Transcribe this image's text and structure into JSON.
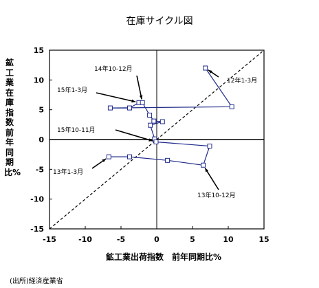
{
  "chart_data": {
    "type": "scatter",
    "title": "在庫サイクル図",
    "xlabel": "鉱工業出荷指数　前年同期比%",
    "ylabel": "鉱工業在庫指数　前年同期比%",
    "xlim": [
      -15,
      15
    ],
    "ylim": [
      -15,
      15
    ],
    "x_ticks": [
      "-15",
      "-10",
      "-5",
      "0",
      "5",
      "10",
      "15"
    ],
    "y_ticks": [
      "15",
      "10",
      "5",
      "0",
      "-5",
      "-10",
      "-15"
    ],
    "grid": false,
    "reference_line": {
      "from": [
        -15,
        -15
      ],
      "to": [
        15,
        15
      ],
      "style": "dashed"
    },
    "series": [
      {
        "values": [
          {
            "x": 6.8,
            "y": 12.0
          },
          {
            "x": 10.5,
            "y": 5.5
          },
          {
            "x": -6.5,
            "y": 5.3
          },
          {
            "x": -3.8,
            "y": 5.3
          },
          {
            "x": -2.5,
            "y": 6.2
          },
          {
            "x": -2.0,
            "y": 6.2
          },
          {
            "x": -1.0,
            "y": 4.1
          },
          {
            "x": -0.4,
            "y": 3.1
          },
          {
            "x": 0.8,
            "y": 3.0
          },
          {
            "x": -0.9,
            "y": 2.4
          },
          {
            "x": -0.3,
            "y": 0.1
          },
          {
            "x": -0.1,
            "y": -0.4
          },
          {
            "x": 7.4,
            "y": -1.1
          },
          {
            "x": 6.5,
            "y": -4.3
          },
          {
            "x": 1.5,
            "y": -3.5
          },
          {
            "x": -3.8,
            "y": -2.9
          },
          {
            "x": -6.7,
            "y": -2.9
          }
        ]
      }
    ],
    "annotations": [
      {
        "text": "12年1-3月",
        "point_index": 0
      },
      {
        "text": "14年10-12月",
        "point_index": 5
      },
      {
        "text": "15年1-3月",
        "point_index": 4
      },
      {
        "text": "15年10-11月",
        "point_index": 11
      },
      {
        "text": "13年1-3月",
        "point_index": 16
      },
      {
        "text": "13年10-12月",
        "point_index": 13
      }
    ],
    "source": "(出所)経済産業省"
  }
}
